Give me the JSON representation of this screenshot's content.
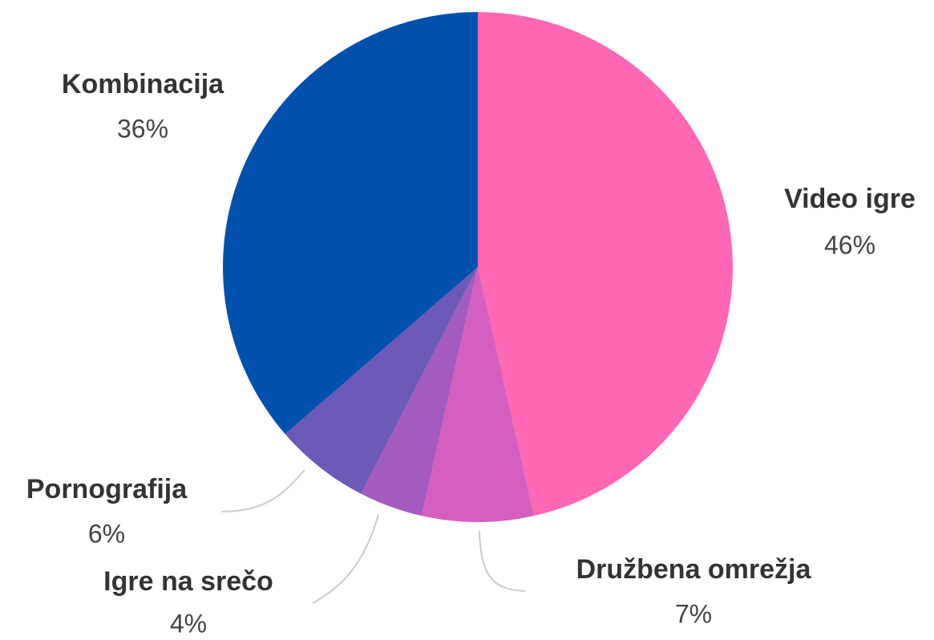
{
  "chart_data": {
    "type": "pie",
    "categories": [
      "Video igre",
      "Družbena omrežja",
      "Igre na srečo",
      "Pornografija",
      "Kombinacija"
    ],
    "values": [
      46,
      7,
      4,
      6,
      36
    ],
    "value_labels": [
      "46%",
      "7%",
      "4%",
      "6%",
      "36%"
    ],
    "colors": [
      "#ff66b3",
      "#d55fbe",
      "#a45bc0",
      "#6c59b8",
      "#0050ae"
    ]
  }
}
